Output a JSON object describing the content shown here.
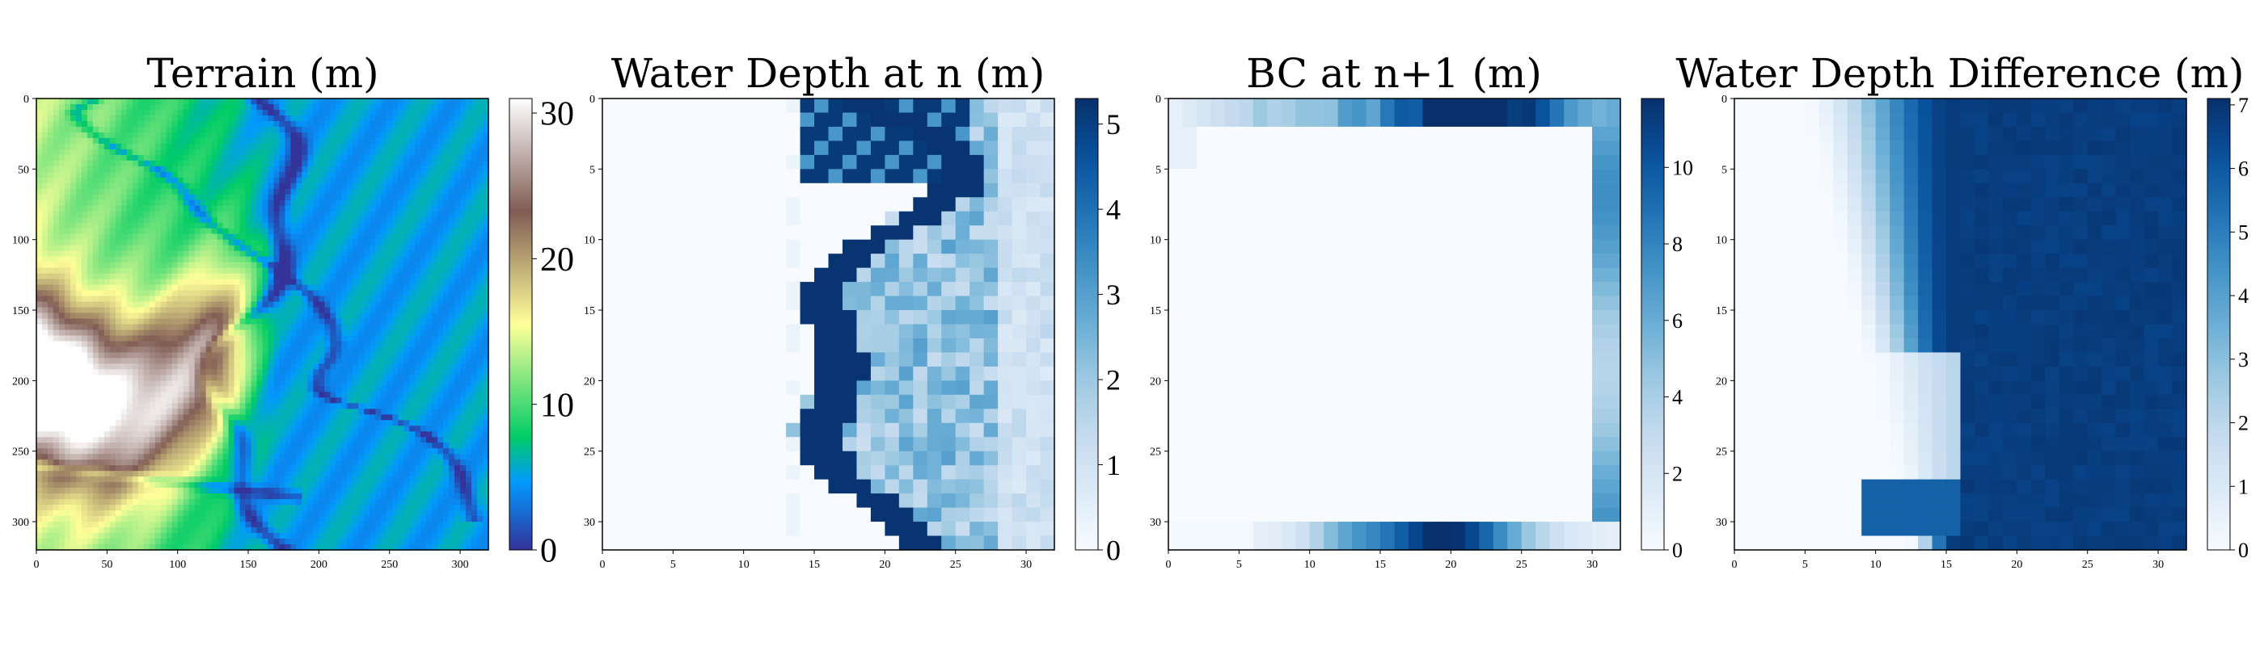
{
  "chart_data": [
    {
      "type": "heatmap",
      "title": "Terrain (m)",
      "colormap": "terrain",
      "grid_shape": [
        320,
        320
      ],
      "xlim": [
        0,
        320
      ],
      "ylim": [
        320,
        0
      ],
      "xticks": [
        0,
        50,
        100,
        150,
        200,
        250,
        300
      ],
      "yticks": [
        0,
        50,
        100,
        150,
        200,
        250,
        300
      ],
      "colorbar": {
        "vmin": 0,
        "vmax": 31,
        "ticks": [
          0,
          10,
          20,
          30
        ]
      },
      "features": [
        "high terrain (about 25-31 m) forms a ridge on the left, x 0-150, y 130-270",
        "lowest terrain (0-3 m) along a winding river channel near x 150-280",
        "terrain around 3-8 m (blue) over the right half, x greater than 160"
      ]
    },
    {
      "type": "heatmap",
      "title": "Water Depth at n (m)",
      "colormap": "Blues",
      "grid_shape": [
        32,
        32
      ],
      "xlim": [
        0,
        32
      ],
      "ylim": [
        32,
        0
      ],
      "xticks": [
        0,
        5,
        10,
        15,
        20,
        25,
        30
      ],
      "yticks": [
        0,
        5,
        10,
        15,
        20,
        25,
        30
      ],
      "colorbar": {
        "vmin": 0,
        "vmax": 5.3,
        "ticks": [
          0,
          1,
          2,
          3,
          4,
          5
        ]
      },
      "features": [
        "deep water (about 5 m) along a winding channel near columns 14-26",
        "shallow water (1-3 m) over columns 16-31",
        "no water at columns 0-12"
      ]
    },
    {
      "type": "heatmap",
      "title": "BC at n+1 (m)",
      "colormap": "Blues",
      "grid_shape": [
        32,
        32
      ],
      "xlim": [
        0,
        32
      ],
      "ylim": [
        32,
        0
      ],
      "xticks": [
        0,
        5,
        10,
        15,
        20,
        25,
        30
      ],
      "yticks": [
        0,
        5,
        10,
        15,
        20,
        25,
        30
      ],
      "colorbar": {
        "vmin": 0,
        "vmax": 11.8,
        "ticks": [
          0,
          2,
          4,
          6,
          8,
          10
        ]
      },
      "features": [
        "boundary condition values only on a 2-cell-wide border ring",
        "interior cells are zero",
        "maximum about 11.8 at the bottom border near column 18 and top border near columns 14-25"
      ]
    },
    {
      "type": "heatmap",
      "title": "Water Depth Difference (m)",
      "colormap": "Blues",
      "grid_shape": [
        32,
        32
      ],
      "xlim": [
        0,
        32
      ],
      "ylim": [
        32,
        0
      ],
      "xticks": [
        0,
        5,
        10,
        15,
        20,
        25,
        30
      ],
      "yticks": [
        0,
        5,
        10,
        15,
        20,
        25,
        30
      ],
      "colorbar": {
        "vmin": 0,
        "vmax": 7.1,
        "ticks": [
          0,
          1,
          2,
          3,
          4,
          5,
          6,
          7
        ]
      },
      "features": [
        "large difference (about 6.5-7 m) over columns 16-31",
        "gradient from 0 to 6 m across columns 0-15",
        "near-zero wedge at columns 0-15, rows 18-27"
      ]
    }
  ]
}
